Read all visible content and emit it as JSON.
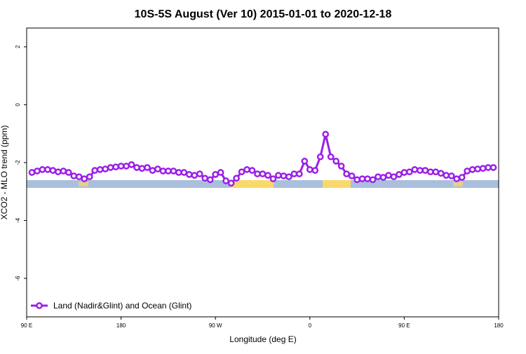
{
  "chart_data": {
    "type": "line",
    "title": "10S-5S August (Ver 10)   2015-01-01 to 2020-12-18",
    "x_label": "Longitude (deg E)",
    "y_label": "XCO2 - MLO trend (ppm)",
    "xlim": [
      90,
      540
    ],
    "xticks": [
      {
        "value": 90,
        "label": "90 E"
      },
      {
        "value": 180,
        "label": "180"
      },
      {
        "value": 270,
        "label": "90 W"
      },
      {
        "value": 360,
        "label": "0"
      },
      {
        "value": 450,
        "label": "90 E"
      },
      {
        "value": 540,
        "label": "180"
      }
    ],
    "ylim": [
      -7.33,
      2.65
    ],
    "yticks": [
      -6,
      -4,
      -2,
      0,
      2
    ],
    "legend_position": "bottom-left",
    "x": [
      95,
      100,
      105,
      110,
      115,
      120,
      125,
      130,
      135,
      140,
      145,
      150,
      155,
      160,
      165,
      170,
      175,
      180,
      185,
      190,
      195,
      200,
      205,
      210,
      215,
      220,
      225,
      230,
      235,
      240,
      245,
      250,
      255,
      260,
      265,
      270,
      275,
      280,
      285,
      290,
      295,
      300,
      305,
      310,
      315,
      320,
      325,
      330,
      335,
      340,
      345,
      350,
      355,
      360,
      365,
      370,
      375,
      380,
      385,
      390,
      395,
      400,
      405,
      410,
      415,
      420,
      425,
      430,
      435,
      440,
      445,
      450,
      455,
      460,
      465,
      470,
      475,
      480,
      485,
      490,
      495,
      500,
      505,
      510,
      515,
      520,
      525,
      530,
      535
    ],
    "series": [
      {
        "name": "Land (Nadir&Glint) and Ocean (Glint)",
        "color": "#9b1fe8",
        "values": [
          -2.34,
          -2.29,
          -2.24,
          -2.24,
          -2.27,
          -2.32,
          -2.29,
          -2.34,
          -2.46,
          -2.49,
          -2.56,
          -2.49,
          -2.27,
          -2.24,
          -2.22,
          -2.17,
          -2.15,
          -2.12,
          -2.12,
          -2.07,
          -2.17,
          -2.2,
          -2.17,
          -2.27,
          -2.22,
          -2.29,
          -2.29,
          -2.29,
          -2.34,
          -2.34,
          -2.41,
          -2.44,
          -2.39,
          -2.54,
          -2.59,
          -2.41,
          -2.34,
          -2.63,
          -2.71,
          -2.54,
          -2.32,
          -2.24,
          -2.27,
          -2.39,
          -2.39,
          -2.44,
          -2.56,
          -2.44,
          -2.46,
          -2.49,
          -2.39,
          -2.39,
          -1.95,
          -2.24,
          -2.27,
          -1.8,
          -1.02,
          -1.8,
          -1.95,
          -2.12,
          -2.39,
          -2.46,
          -2.59,
          -2.56,
          -2.56,
          -2.59,
          -2.49,
          -2.51,
          -2.44,
          -2.49,
          -2.41,
          -2.34,
          -2.32,
          -2.24,
          -2.27,
          -2.27,
          -2.32,
          -2.32,
          -2.37,
          -2.44,
          -2.46,
          -2.56,
          -2.51,
          -2.29,
          -2.24,
          -2.22,
          -2.2,
          -2.17,
          -2.17
        ]
      }
    ]
  }
}
